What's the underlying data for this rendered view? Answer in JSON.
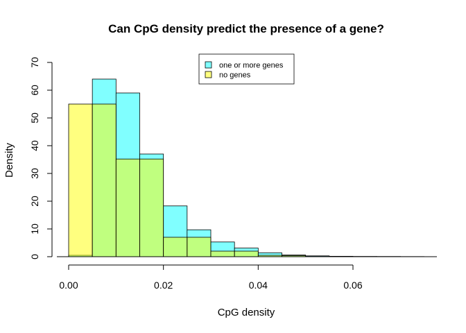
{
  "chart_data": {
    "type": "bar",
    "title": "Can CpG density predict the presence of a gene?",
    "xlabel": "CpG density",
    "ylabel": "Density",
    "xlim": [
      0,
      0.075
    ],
    "ylim": [
      0,
      70
    ],
    "x_ticks": [
      "0.00",
      "0.02",
      "0.04",
      "0.06"
    ],
    "x_tick_values": [
      0,
      0.02,
      0.04,
      0.06
    ],
    "y_ticks": [
      "0",
      "10",
      "20",
      "30",
      "40",
      "50",
      "60",
      "70"
    ],
    "y_tick_values": [
      0,
      10,
      20,
      30,
      40,
      50,
      60,
      70
    ],
    "bin_width": 0.005,
    "legend_position": "top-center",
    "series": [
      {
        "name": "one or more genes",
        "color": "#80FFFF",
        "bin_starts": [
          0.0,
          0.005,
          0.01,
          0.015,
          0.02,
          0.025,
          0.03,
          0.035,
          0.04,
          0.045,
          0.05,
          0.055,
          0.06,
          0.065,
          0.07
        ],
        "values": [
          0.5,
          64,
          59,
          37,
          18.3,
          9.7,
          5.3,
          3.1,
          1.4,
          0.6,
          0.3,
          0.15,
          0.1,
          0.08,
          0.05
        ]
      },
      {
        "name": "no genes",
        "color": "#FFFF80",
        "bin_starts": [
          0.0,
          0.005,
          0.01,
          0.015,
          0.02,
          0.025,
          0.03,
          0.035,
          0.04,
          0.045,
          0.05
        ],
        "values": [
          55,
          55,
          35.2,
          35.2,
          7,
          7,
          2,
          2,
          0.5,
          0.4,
          0.1
        ]
      }
    ],
    "overlap_color": "#BFFF80"
  }
}
